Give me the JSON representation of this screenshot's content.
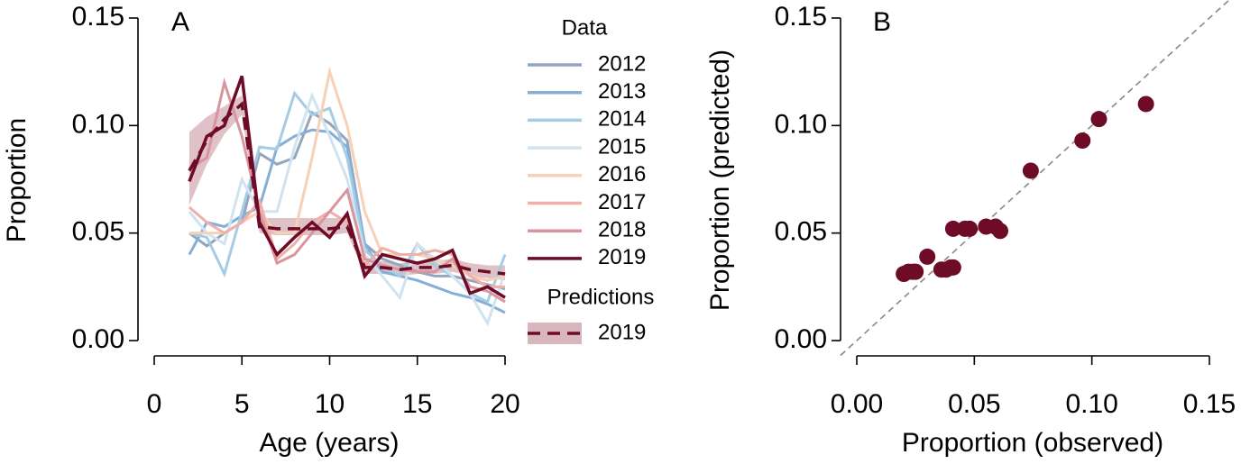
{
  "chart_data": [
    {
      "type": "line",
      "panel_label": "A",
      "xlabel": "Age (years)",
      "ylabel": "Proportion",
      "x": [
        2,
        3,
        4,
        5,
        6,
        7,
        8,
        9,
        10,
        11,
        12,
        13,
        14,
        15,
        16,
        17,
        18,
        19,
        20
      ],
      "xlim": [
        0,
        20
      ],
      "xticks": [
        0,
        5,
        10,
        15,
        20
      ],
      "ylim": [
        0,
        0.15
      ],
      "yticks": [
        {
          "value": 0,
          "label": "0.00"
        },
        0.05,
        {
          "value": 0.1,
          "label": "0.10"
        },
        0.15
      ],
      "legend_title": "Data",
      "series": [
        {
          "name": "2012",
          "color": "#94a6bb",
          "values": [
            0.05,
            0.044,
            0.05,
            0.055,
            0.087,
            0.082,
            0.085,
            0.106,
            0.101,
            0.093,
            0.045,
            0.038,
            0.035,
            0.032,
            0.03,
            0.03,
            0.028,
            0.026,
            0.024
          ]
        },
        {
          "name": "2013",
          "color": "#86afd6",
          "values": [
            0.04,
            0.055,
            0.053,
            0.058,
            0.062,
            0.09,
            0.095,
            0.098,
            0.097,
            0.09,
            0.045,
            0.032,
            0.03,
            0.028,
            0.025,
            0.022,
            0.02,
            0.017,
            0.013
          ]
        },
        {
          "name": "2014",
          "color": "#a5cce4",
          "values": [
            0.05,
            0.048,
            0.031,
            0.06,
            0.09,
            0.089,
            0.115,
            0.105,
            0.108,
            0.085,
            0.042,
            0.035,
            0.03,
            0.045,
            0.035,
            0.03,
            0.022,
            0.018,
            0.04
          ]
        },
        {
          "name": "2015",
          "color": "#cfe4f0",
          "values": [
            0.06,
            0.05,
            0.045,
            0.075,
            0.06,
            0.06,
            0.09,
            0.114,
            0.095,
            0.075,
            0.04,
            0.03,
            0.02,
            0.045,
            0.038,
            0.03,
            0.022,
            0.008,
            0.032
          ]
        },
        {
          "name": "2016",
          "color": "#f7d0b8",
          "values": [
            0.05,
            0.05,
            0.05,
            0.055,
            0.06,
            0.05,
            0.05,
            0.085,
            0.125,
            0.1,
            0.06,
            0.04,
            0.04,
            0.04,
            0.038,
            0.035,
            0.03,
            0.028,
            0.03
          ]
        },
        {
          "name": "2017",
          "color": "#eeb0a8",
          "values": [
            0.062,
            0.055,
            0.05,
            0.055,
            0.065,
            0.038,
            0.045,
            0.055,
            0.06,
            0.055,
            0.035,
            0.043,
            0.04,
            0.04,
            0.042,
            0.04,
            0.03,
            0.025,
            0.025
          ]
        },
        {
          "name": "2018",
          "color": "#da949e",
          "values": [
            0.08,
            0.085,
            0.12,
            0.095,
            0.06,
            0.036,
            0.04,
            0.05,
            0.06,
            0.07,
            0.038,
            0.035,
            0.033,
            0.032,
            0.032,
            0.038,
            0.025,
            0.023,
            0.018
          ]
        },
        {
          "name": "2019",
          "color": "#6e0b26",
          "values": [
            0.074,
            0.095,
            0.1,
            0.123,
            0.055,
            0.04,
            0.048,
            0.055,
            0.048,
            0.059,
            0.03,
            0.04,
            0.038,
            0.036,
            0.038,
            0.042,
            0.022,
            0.025,
            0.02
          ]
        }
      ],
      "predictions": {
        "legend_title": "Predictions",
        "name": "2019",
        "color": "#6e0b26",
        "band_color": "#d9b6be",
        "values": [
          0.079,
          0.093,
          0.103,
          0.11,
          0.053,
          0.052,
          0.052,
          0.052,
          0.052,
          0.053,
          0.034,
          0.034,
          0.033,
          0.034,
          0.034,
          0.035,
          0.033,
          0.032,
          0.031
        ],
        "lower": [
          0.063,
          0.082,
          0.096,
          0.105,
          0.05,
          0.049,
          0.049,
          0.049,
          0.049,
          0.05,
          0.031,
          0.031,
          0.03,
          0.031,
          0.031,
          0.032,
          0.03,
          0.029,
          0.028
        ],
        "upper": [
          0.097,
          0.104,
          0.109,
          0.114,
          0.057,
          0.057,
          0.057,
          0.057,
          0.057,
          0.057,
          0.037,
          0.037,
          0.036,
          0.037,
          0.037,
          0.038,
          0.036,
          0.035,
          0.035
        ]
      }
    },
    {
      "type": "scatter",
      "panel_label": "B",
      "xlabel": "Proportion (observed)",
      "ylabel": "Proportion (predicted)",
      "color": "#6e0b26",
      "identity_line": true,
      "x": [
        0.02,
        0.022,
        0.024,
        0.025,
        0.03,
        0.036,
        0.038,
        0.04,
        0.041,
        0.041,
        0.046,
        0.048,
        0.055,
        0.059,
        0.061,
        0.074,
        0.096,
        0.103,
        0.123
      ],
      "y": [
        0.031,
        0.032,
        0.032,
        0.032,
        0.039,
        0.033,
        0.033,
        0.034,
        0.034,
        0.052,
        0.052,
        0.052,
        0.053,
        0.053,
        0.051,
        0.079,
        0.093,
        0.103,
        0.11
      ],
      "xlim": [
        0,
        0.15
      ],
      "xticks": [
        {
          "value": 0,
          "label": "0.00"
        },
        0.05,
        {
          "value": 0.1,
          "label": "0.10"
        },
        0.15
      ],
      "ylim": [
        0,
        0.15
      ],
      "yticks": [
        {
          "value": 0,
          "label": "0.00"
        },
        0.05,
        {
          "value": 0.1,
          "label": "0.10"
        },
        0.15
      ]
    }
  ]
}
